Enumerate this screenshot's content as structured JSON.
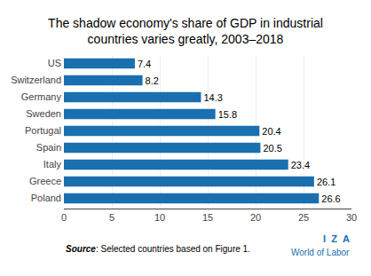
{
  "chart_data": {
    "type": "bar",
    "orientation": "horizontal",
    "title": "The shadow economy's share of GDP in industrial\ncountries varies greatly, 2003–2018",
    "categories": [
      "US",
      "Switzerland",
      "Germany",
      "Sweden",
      "Portugal",
      "Spain",
      "Italy",
      "Greece",
      "Poland"
    ],
    "values": [
      7.4,
      8.2,
      14.3,
      15.8,
      20.4,
      20.5,
      23.4,
      26.1,
      26.6
    ],
    "color": "#1a6faf",
    "xlim": [
      0,
      30
    ],
    "xticks": [
      0,
      5,
      10,
      15,
      20,
      25,
      30
    ],
    "grid": true,
    "data_labels": true,
    "annotations": [
      "Source",
      ": Selected countries based on Figure 1.",
      "I  Z  A",
      "World of Labor"
    ]
  }
}
